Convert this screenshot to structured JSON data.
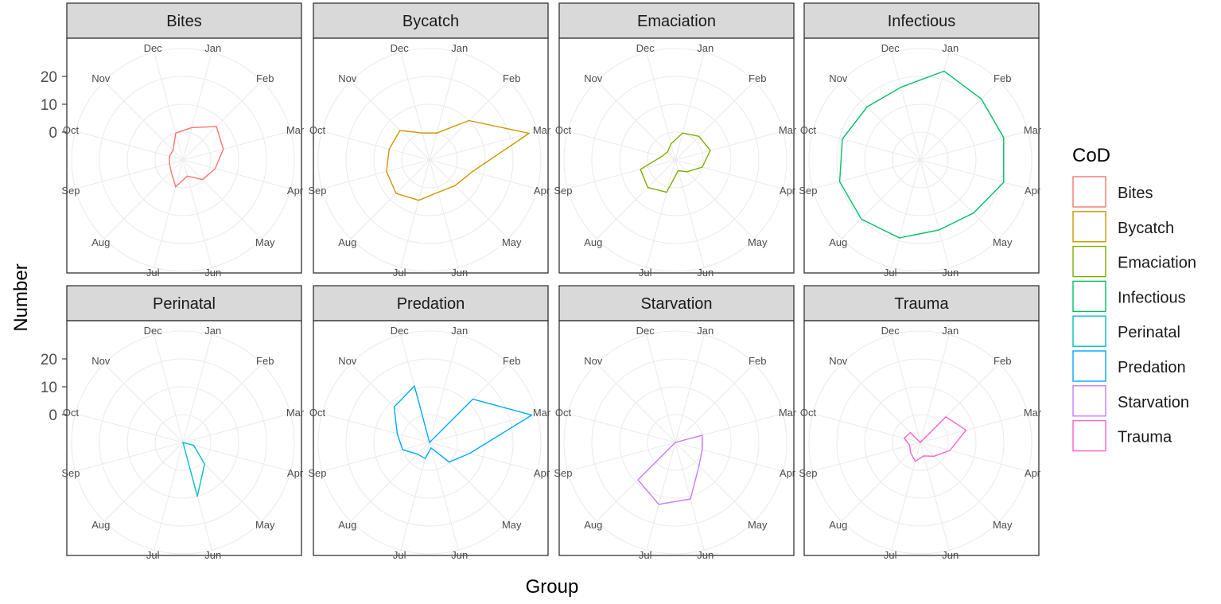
{
  "chart_data": {
    "type": "radar",
    "facet_by": "CoD",
    "xlabel": "Group",
    "ylabel": "Number",
    "y_ticks": [
      0,
      10,
      20
    ],
    "ylim": [
      -10,
      30
    ],
    "grid": true,
    "theme": "bw",
    "legend": {
      "title": "CoD",
      "placement": "right"
    },
    "categories": [
      "Jan",
      "Feb",
      "Mar",
      "Apr",
      "May",
      "Jun",
      "Jul",
      "Aug",
      "Sep",
      "Oct",
      "Nov",
      "Dec"
    ],
    "series": [
      {
        "name": "Bites",
        "color": "#F8766D",
        "values": [
          2,
          7,
          5,
          2,
          0,
          -4,
          0,
          -4,
          -5,
          -5,
          -5,
          0
        ]
      },
      {
        "name": "Bycatch",
        "color": "#CD9600",
        "values": [
          0,
          10,
          27,
          6,
          3,
          2,
          5,
          7,
          6,
          5,
          5,
          0
        ]
      },
      {
        "name": "Emaciation",
        "color": "#7CAE00",
        "values": [
          0,
          2,
          3,
          0,
          -4,
          -6,
          2,
          4,
          3,
          -5,
          -6,
          -4
        ]
      },
      {
        "name": "Infectious",
        "color": "#00BE67",
        "values": [
          23,
          21,
          21,
          21,
          17,
          16,
          19,
          20,
          20,
          19,
          17,
          17
        ]
      },
      {
        "name": "Perinatal",
        "color": "#00BFC4",
        "values": [
          -10,
          -10,
          -10,
          -6,
          1,
          10,
          -10,
          -10,
          -10,
          -10,
          -10,
          -10
        ]
      },
      {
        "name": "Predation",
        "color": "#00A9FF",
        "values": [
          -10,
          12,
          28,
          5,
          0,
          -8,
          -4,
          -4,
          0,
          2,
          8,
          11
        ]
      },
      {
        "name": "Starvation",
        "color": "#C77CFF",
        "values": [
          -10,
          -10,
          0,
          0,
          2,
          11,
          13,
          9,
          -10,
          -10,
          -10,
          -10
        ]
      },
      {
        "name": "Trauma",
        "color": "#FF61CC",
        "values": [
          -10,
          3,
          7,
          1,
          -3,
          -5,
          -3,
          -5,
          -6,
          -4,
          -5,
          -10
        ]
      }
    ]
  }
}
